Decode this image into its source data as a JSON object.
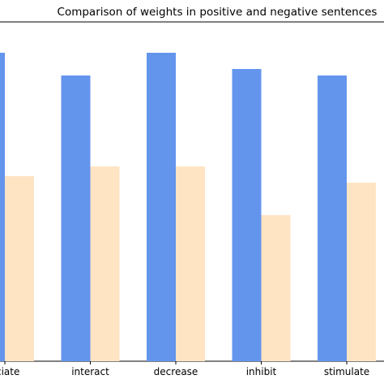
{
  "chart_data": {
    "type": "bar",
    "title": "Comparison of weights in positive and negative sentences",
    "xlabel": "",
    "ylabel": "",
    "categories": [
      "ociate",
      "interact",
      "decrease",
      "inhibit",
      "stimulate"
    ],
    "ylim": [
      0,
      1.0
    ],
    "grid": false,
    "series": [
      {
        "values": [
          0.95,
          0.88,
          0.95,
          0.9,
          0.88
        ],
        "color": "#6495ED"
      },
      {
        "values": [
          0.57,
          0.6,
          0.6,
          0.45,
          0.55
        ],
        "color": "#FFE4C4"
      }
    ]
  }
}
